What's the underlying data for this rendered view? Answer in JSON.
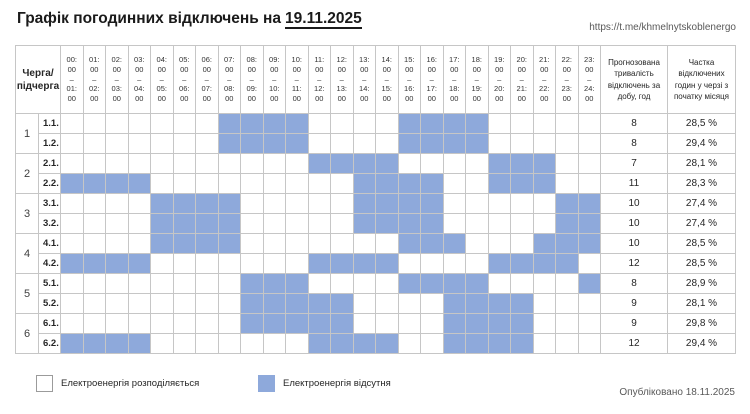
{
  "header": {
    "title_prefix": "Графік погодинних відключень на",
    "title_date": "19.11.2025",
    "link": "https://t.me/khmelnytskoblenergo"
  },
  "chart_data": {
    "type": "heatmap",
    "title": "Графік погодинних відключень на 19.11.2025",
    "corner_label": "Черга/підчерга",
    "hour_slots": [
      {
        "start": "00:00",
        "end": "01:00"
      },
      {
        "start": "01:00",
        "end": "02:00"
      },
      {
        "start": "02:00",
        "end": "03:00"
      },
      {
        "start": "03:00",
        "end": "04:00"
      },
      {
        "start": "04:00",
        "end": "05:00"
      },
      {
        "start": "05:00",
        "end": "06:00"
      },
      {
        "start": "06:00",
        "end": "07:00"
      },
      {
        "start": "07:00",
        "end": "08:00"
      },
      {
        "start": "08:00",
        "end": "09:00"
      },
      {
        "start": "09:00",
        "end": "10:00"
      },
      {
        "start": "10:00",
        "end": "11:00"
      },
      {
        "start": "11:00",
        "end": "12:00"
      },
      {
        "start": "12:00",
        "end": "13:00"
      },
      {
        "start": "13:00",
        "end": "14:00"
      },
      {
        "start": "14:00",
        "end": "15:00"
      },
      {
        "start": "15:00",
        "end": "16:00"
      },
      {
        "start": "16:00",
        "end": "17:00"
      },
      {
        "start": "17:00",
        "end": "18:00"
      },
      {
        "start": "18:00",
        "end": "19:00"
      },
      {
        "start": "19:00",
        "end": "20:00"
      },
      {
        "start": "20:00",
        "end": "21:00"
      },
      {
        "start": "21:00",
        "end": "22:00"
      },
      {
        "start": "22:00",
        "end": "23:00"
      },
      {
        "start": "23:00",
        "end": "24:00"
      }
    ],
    "summary_headers": {
      "duration": "Прогнозована тривалість відключень за добу, год",
      "share": "Частка відключених годин у черзі з початку місяця"
    },
    "rows": [
      {
        "queue": "1",
        "subqueue": "1.1.",
        "outage_hours": [
          7,
          8,
          9,
          10,
          15,
          16,
          17,
          18
        ],
        "duration": "8",
        "share": "28,5 %"
      },
      {
        "queue": "1",
        "subqueue": "1.2.",
        "outage_hours": [
          7,
          8,
          9,
          10,
          15,
          16,
          17,
          18
        ],
        "duration": "8",
        "share": "29,4 %"
      },
      {
        "queue": "2",
        "subqueue": "2.1.",
        "outage_hours": [
          11,
          12,
          13,
          14,
          19,
          20,
          21
        ],
        "duration": "7",
        "share": "28,1 %"
      },
      {
        "queue": "2",
        "subqueue": "2.2.",
        "outage_hours": [
          0,
          1,
          2,
          3,
          13,
          14,
          15,
          16,
          19,
          20,
          21
        ],
        "duration": "11",
        "share": "28,3 %"
      },
      {
        "queue": "3",
        "subqueue": "3.1.",
        "outage_hours": [
          4,
          5,
          6,
          7,
          13,
          14,
          15,
          16,
          22,
          23
        ],
        "duration": "10",
        "share": "27,4 %"
      },
      {
        "queue": "3",
        "subqueue": "3.2.",
        "outage_hours": [
          4,
          5,
          6,
          7,
          13,
          14,
          15,
          16,
          22,
          23
        ],
        "duration": "10",
        "share": "27,4 %"
      },
      {
        "queue": "4",
        "subqueue": "4.1.",
        "outage_hours": [
          4,
          5,
          6,
          7,
          15,
          16,
          17,
          21,
          22,
          23
        ],
        "duration": "10",
        "share": "28,5 %"
      },
      {
        "queue": "4",
        "subqueue": "4.2.",
        "outage_hours": [
          0,
          1,
          2,
          3,
          11,
          12,
          13,
          14,
          19,
          20,
          21,
          22
        ],
        "duration": "12",
        "share": "28,5 %"
      },
      {
        "queue": "5",
        "subqueue": "5.1.",
        "outage_hours": [
          8,
          9,
          10,
          15,
          16,
          17,
          18,
          23
        ],
        "duration": "8",
        "share": "28,9 %"
      },
      {
        "queue": "5",
        "subqueue": "5.2.",
        "outage_hours": [
          8,
          9,
          10,
          11,
          12,
          17,
          18,
          19,
          20
        ],
        "duration": "9",
        "share": "28,1 %"
      },
      {
        "queue": "6",
        "subqueue": "6.1.",
        "outage_hours": [
          8,
          9,
          10,
          11,
          12,
          17,
          18,
          19,
          20
        ],
        "duration": "9",
        "share": "29,8 %"
      },
      {
        "queue": "6",
        "subqueue": "6.2.",
        "outage_hours": [
          0,
          1,
          2,
          3,
          11,
          12,
          13,
          14,
          17,
          18,
          19,
          20
        ],
        "duration": "12",
        "share": "29,4 %"
      }
    ]
  },
  "legend": {
    "supply_label": "Електроенергія розподіляється",
    "outage_label": "Електроенергія відсутня"
  },
  "footer": {
    "published": "Опубліковано 18.11.2025"
  },
  "colors": {
    "outage": "#8EA9DB",
    "grid": "#C6C6C6",
    "muted_text": "#595959"
  }
}
